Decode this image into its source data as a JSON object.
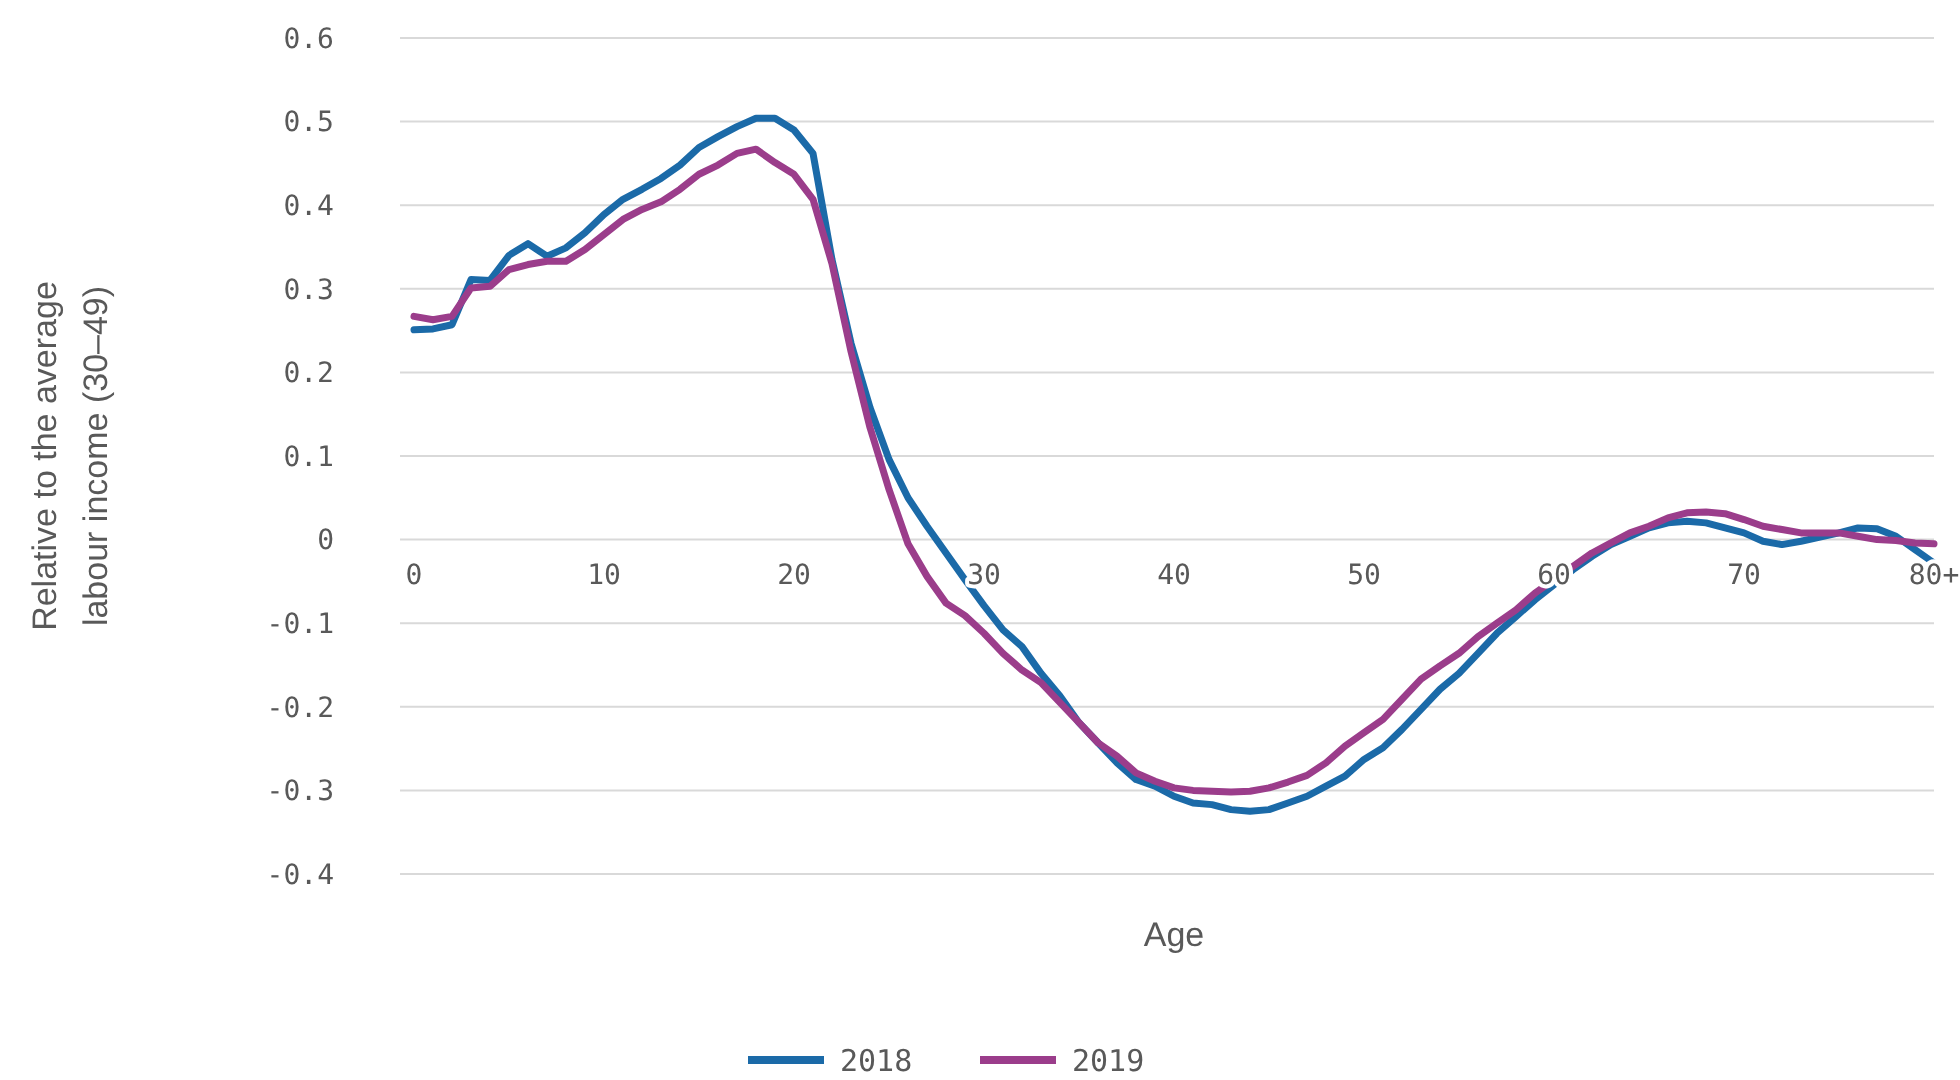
{
  "chart_data": {
    "type": "line",
    "xlabel": "Age",
    "ylabel": "Relative to the average labour income (30–49)",
    "x": [
      0,
      1,
      2,
      3,
      4,
      5,
      6,
      7,
      8,
      9,
      10,
      11,
      12,
      13,
      14,
      15,
      16,
      17,
      18,
      19,
      20,
      21,
      22,
      23,
      24,
      25,
      26,
      27,
      28,
      29,
      30,
      31,
      32,
      33,
      34,
      35,
      36,
      37,
      38,
      39,
      40,
      41,
      42,
      43,
      44,
      45,
      46,
      47,
      48,
      49,
      50,
      51,
      52,
      53,
      54,
      55,
      56,
      57,
      58,
      59,
      60,
      61,
      62,
      63,
      64,
      65,
      66,
      67,
      68,
      69,
      70,
      71,
      72,
      73,
      74,
      75,
      76,
      77,
      78,
      79,
      80
    ],
    "series": [
      {
        "name": "2018",
        "color": "#1b6aa8",
        "values": [
          0.251,
          0.252,
          0.257,
          0.311,
          0.31,
          0.34,
          0.354,
          0.339,
          0.349,
          0.367,
          0.389,
          0.407,
          0.419,
          0.432,
          0.448,
          0.469,
          0.482,
          0.494,
          0.504,
          0.504,
          0.49,
          0.462,
          0.335,
          0.235,
          0.158,
          0.096,
          0.05,
          0.016,
          -0.016,
          -0.048,
          -0.079,
          -0.108,
          -0.128,
          -0.16,
          -0.187,
          -0.219,
          -0.243,
          -0.267,
          -0.287,
          -0.295,
          -0.307,
          -0.315,
          -0.317,
          -0.323,
          -0.325,
          -0.323,
          -0.315,
          -0.307,
          -0.295,
          -0.283,
          -0.263,
          -0.249,
          -0.227,
          -0.203,
          -0.179,
          -0.16,
          -0.136,
          -0.112,
          -0.092,
          -0.072,
          -0.054,
          -0.036,
          -0.02,
          -0.006,
          0.004,
          0.014,
          0.02,
          0.022,
          0.02,
          0.014,
          0.008,
          -0.002,
          -0.006,
          -0.002,
          0.003,
          0.008,
          0.014,
          0.013,
          0.004,
          -0.012,
          -0.028
        ]
      },
      {
        "name": "2019",
        "color": "#9b3d8b",
        "values": [
          0.267,
          0.263,
          0.267,
          0.301,
          0.303,
          0.323,
          0.329,
          0.333,
          0.333,
          0.347,
          0.365,
          0.383,
          0.395,
          0.404,
          0.419,
          0.437,
          0.448,
          0.462,
          0.467,
          0.451,
          0.437,
          0.407,
          0.33,
          0.225,
          0.134,
          0.06,
          -0.005,
          -0.044,
          -0.076,
          -0.091,
          -0.112,
          -0.136,
          -0.156,
          -0.171,
          -0.195,
          -0.219,
          -0.243,
          -0.259,
          -0.279,
          -0.289,
          -0.297,
          -0.3,
          -0.301,
          -0.302,
          -0.301,
          -0.297,
          -0.29,
          -0.282,
          -0.267,
          -0.247,
          -0.231,
          -0.215,
          -0.191,
          -0.167,
          -0.151,
          -0.136,
          -0.116,
          -0.1,
          -0.084,
          -0.064,
          -0.048,
          -0.032,
          -0.016,
          -0.004,
          0.008,
          0.016,
          0.026,
          0.032,
          0.033,
          0.031,
          0.024,
          0.016,
          0.012,
          0.008,
          0.008,
          0.008,
          0.004,
          0,
          -0.001,
          -0.004,
          -0.005
        ]
      }
    ],
    "xlim": [
      0,
      80
    ],
    "xticks": [
      0,
      10,
      20,
      30,
      40,
      50,
      60,
      70,
      {
        "value": 80,
        "label": "80+"
      }
    ],
    "ylim": [
      -0.4,
      0.6
    ],
    "yticks": [
      -0.4,
      -0.3,
      -0.2,
      -0.1,
      0,
      0.1,
      0.2,
      0.3,
      0.4,
      0.5,
      0.6
    ],
    "grid": "y",
    "legend": "bottom",
    "line_style": "solid"
  }
}
